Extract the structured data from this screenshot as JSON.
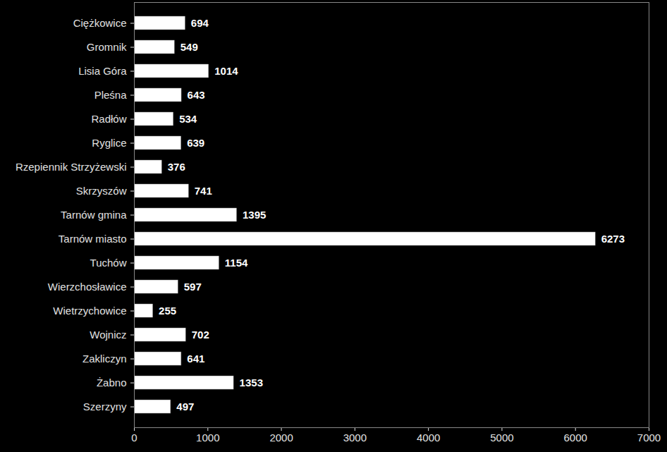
{
  "chart_data": {
    "type": "bar",
    "orientation": "horizontal",
    "categories": [
      "Ciężkowice",
      "Gromnik",
      "Lisia Góra",
      "Pleśna",
      "Radłów",
      "Ryglice",
      "Rzepiennik Strzyżewski",
      "Skrzyszów",
      "Tarnów gmina",
      "Tarnów miasto",
      "Tuchów",
      "Wierzchosławice",
      "Wietrzychowice",
      "Wojnicz",
      "Zakliczyn",
      "Żabno",
      "Szerzyny"
    ],
    "values": [
      694,
      549,
      1014,
      643,
      534,
      639,
      376,
      741,
      1395,
      6273,
      1154,
      597,
      255,
      702,
      641,
      1353,
      497
    ],
    "color": "#ffffff",
    "xlim": [
      0,
      7000
    ],
    "xticks": [
      0,
      1000,
      2000,
      3000,
      4000,
      5000,
      6000,
      7000
    ],
    "grid": false,
    "data_labels": true
  }
}
